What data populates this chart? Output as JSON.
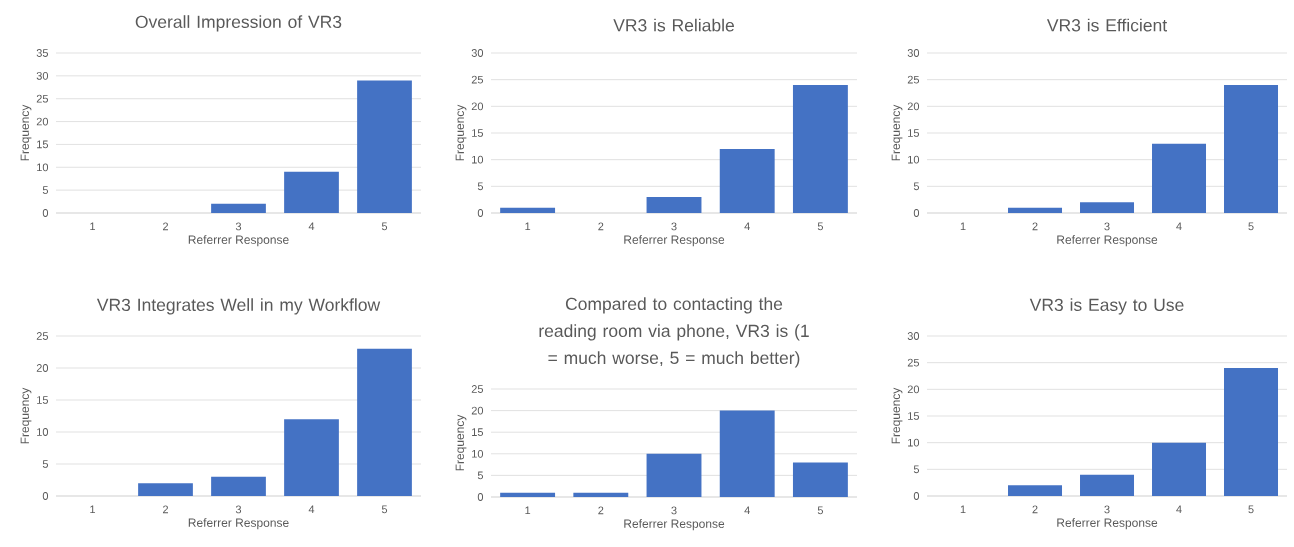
{
  "chart_data": [
    {
      "type": "bar",
      "title": "Overall Impression of VR3",
      "xlabel": "Referrer Response",
      "ylabel": "Frequency",
      "categories": [
        "1",
        "2",
        "3",
        "4",
        "5"
      ],
      "values": [
        0,
        0,
        2,
        9,
        29
      ],
      "color": "#4472c4",
      "ylim": [
        0,
        35
      ],
      "yticks": [
        0,
        5,
        10,
        15,
        20,
        25,
        30,
        35
      ],
      "grid": "y"
    },
    {
      "type": "bar",
      "title": "VR3 is Reliable",
      "xlabel": "Referrer Response",
      "ylabel": "Frequency",
      "categories": [
        "1",
        "2",
        "3",
        "4",
        "5"
      ],
      "values": [
        1,
        0,
        3,
        12,
        24
      ],
      "color": "#4472c4",
      "ylim": [
        0,
        30
      ],
      "yticks": [
        0,
        5,
        10,
        15,
        20,
        25,
        30
      ],
      "grid": "y"
    },
    {
      "type": "bar",
      "title": "VR3 is Efficient",
      "xlabel": "Referrer Response",
      "ylabel": "Frequency",
      "categories": [
        "1",
        "2",
        "3",
        "4",
        "5"
      ],
      "values": [
        0,
        1,
        2,
        13,
        24
      ],
      "color": "#4472c4",
      "ylim": [
        0,
        30
      ],
      "yticks": [
        0,
        5,
        10,
        15,
        20,
        25,
        30
      ],
      "grid": "y"
    },
    {
      "type": "bar",
      "title": "VR3 Integrates Well in my Workflow",
      "xlabel": "Referrer Response",
      "ylabel": "Frequency",
      "categories": [
        "1",
        "2",
        "3",
        "4",
        "5"
      ],
      "values": [
        0,
        2,
        3,
        12,
        23
      ],
      "color": "#4472c4",
      "ylim": [
        0,
        25
      ],
      "yticks": [
        0,
        5,
        10,
        15,
        20,
        25
      ],
      "grid": "y"
    },
    {
      "type": "bar",
      "title": "Compared to contacting the reading room via phone, VR3 is (1 = much worse, 5 = much better)",
      "xlabel": "Referrer Response",
      "ylabel": "Frequency",
      "categories": [
        "1",
        "2",
        "3",
        "4",
        "5"
      ],
      "values": [
        1,
        1,
        10,
        20,
        8
      ],
      "color": "#4472c4",
      "ylim": [
        0,
        25
      ],
      "yticks": [
        0,
        5,
        10,
        15,
        20,
        25
      ],
      "grid": "y"
    },
    {
      "type": "bar",
      "title": "VR3 is Easy to Use",
      "xlabel": "Referrer Response",
      "ylabel": "Frequency",
      "categories": [
        "1",
        "2",
        "3",
        "4",
        "5"
      ],
      "values": [
        0,
        2,
        4,
        10,
        24
      ],
      "color": "#4472c4",
      "ylim": [
        0,
        30
      ],
      "yticks": [
        0,
        5,
        10,
        15,
        20,
        25,
        30
      ],
      "grid": "y"
    }
  ]
}
